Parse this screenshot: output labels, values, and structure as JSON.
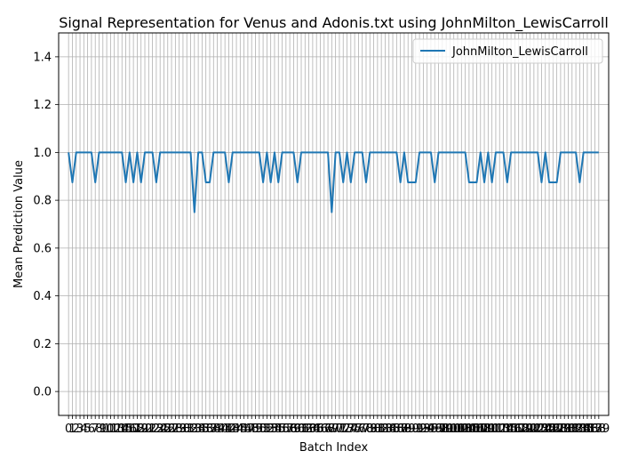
{
  "chart_data": {
    "type": "line",
    "title": "Signal Representation for Venus and Adonis.txt using JohnMilton_LewisCarroll",
    "xlabel": "Batch Index",
    "ylabel": "Mean Prediction Value",
    "ylim": [
      -0.1,
      1.5
    ],
    "xlim": [
      -2.6,
      141.6
    ],
    "y_ticks": [
      "0.0",
      "0.2",
      "0.4",
      "0.6",
      "0.8",
      "1.0",
      "1.2",
      "1.4"
    ],
    "x_tick_step": 1,
    "x_tick_labels_visible": [
      "0",
      "1",
      "2",
      "3",
      "4",
      "5",
      "6",
      "7",
      "8",
      "9",
      "10",
      "11",
      "12",
      "13",
      "14",
      "15",
      "16",
      "17",
      "18",
      "19",
      "20",
      "21",
      "22",
      "23",
      "24",
      "25",
      "26",
      "27",
      "28",
      "29",
      "30",
      "31",
      "32",
      "33",
      "34",
      "35",
      "36",
      "37",
      "38",
      "39",
      "40",
      "41",
      "42",
      "43",
      "44",
      "45",
      "46",
      "47",
      "48",
      "49",
      "50",
      "51",
      "52",
      "53",
      "54",
      "55",
      "56",
      "57",
      "58",
      "59",
      "60",
      "61",
      "62",
      "63",
      "64",
      "65",
      "66",
      "67",
      "68",
      "69",
      "70",
      "71",
      "72",
      "73",
      "74",
      "75",
      "76",
      "77",
      "78",
      "79",
      "80",
      "81",
      "82",
      "83",
      "84",
      "85",
      "86",
      "87",
      "88",
      "89",
      "90",
      "91",
      "92",
      "93",
      "94",
      "95",
      "96",
      "97",
      "98",
      "99",
      "100",
      "101",
      "102",
      "103",
      "104",
      "105",
      "106",
      "107",
      "108",
      "109",
      "110",
      "111",
      "112",
      "113",
      "114",
      "115",
      "116",
      "117",
      "118",
      "119",
      "120",
      "121",
      "122",
      "123",
      "124",
      "125",
      "126",
      "127",
      "128",
      "129",
      "130",
      "131",
      "132",
      "133",
      "134",
      "135",
      "136",
      "137",
      "138",
      "139"
    ],
    "grid": true,
    "legend_position": "upper right",
    "series": [
      {
        "name": "JohnMilton_LewisCarroll",
        "color": "#1f77b4",
        "values": [
          1.0,
          0.875,
          1.0,
          1.0,
          1.0,
          1.0,
          1.0,
          0.875,
          1.0,
          1.0,
          1.0,
          1.0,
          1.0,
          1.0,
          1.0,
          0.875,
          1.0,
          0.875,
          1.0,
          0.875,
          1.0,
          1.0,
          1.0,
          0.875,
          1.0,
          1.0,
          1.0,
          1.0,
          1.0,
          1.0,
          1.0,
          1.0,
          1.0,
          0.75,
          1.0,
          1.0,
          0.875,
          0.875,
          1.0,
          1.0,
          1.0,
          1.0,
          0.875,
          1.0,
          1.0,
          1.0,
          1.0,
          1.0,
          1.0,
          1.0,
          1.0,
          0.875,
          1.0,
          0.875,
          1.0,
          0.875,
          1.0,
          1.0,
          1.0,
          1.0,
          0.875,
          1.0,
          1.0,
          1.0,
          1.0,
          1.0,
          1.0,
          1.0,
          1.0,
          0.75,
          1.0,
          1.0,
          0.875,
          1.0,
          0.875,
          1.0,
          1.0,
          1.0,
          0.875,
          1.0,
          1.0,
          1.0,
          1.0,
          1.0,
          1.0,
          1.0,
          1.0,
          0.875,
          1.0,
          0.875,
          0.875,
          0.875,
          1.0,
          1.0,
          1.0,
          1.0,
          0.875,
          1.0,
          1.0,
          1.0,
          1.0,
          1.0,
          1.0,
          1.0,
          1.0,
          0.875,
          0.875,
          0.875,
          1.0,
          0.875,
          1.0,
          0.875,
          1.0,
          1.0,
          1.0,
          0.875,
          1.0,
          1.0,
          1.0,
          1.0,
          1.0,
          1.0,
          1.0,
          1.0,
          0.875,
          1.0,
          0.875,
          0.875,
          0.875,
          1.0,
          1.0,
          1.0,
          1.0,
          1.0,
          0.875,
          1.0,
          1.0,
          1.0,
          1.0,
          1.0
        ]
      }
    ]
  }
}
